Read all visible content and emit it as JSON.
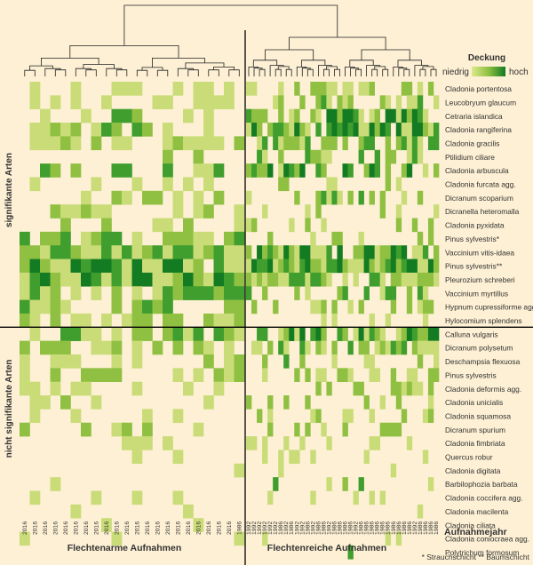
{
  "colors": {
    "background": "#fdf0d4",
    "scale": [
      "#fdf0d4",
      "#c9dc78",
      "#8fc042",
      "#3f9e2e",
      "#137b22"
    ],
    "line": "#000000"
  },
  "legend": {
    "title": "Deckung",
    "low": "niedrig",
    "high": "hoch"
  },
  "side_labels": {
    "top": "signifikante Arten",
    "bottom": "nicht signifikante Arten"
  },
  "bottom_labels": {
    "left": "Flechtenarme Aufnahmen",
    "right": "Flechtenreiche Aufnahmen",
    "year": "Aufnahmejahr"
  },
  "footnote": "* Strauchschicht  ** Baumschicht",
  "chart_data": {
    "type": "heatmap",
    "species_significant": [
      "Cladonia portentosa",
      "Leucobryum glaucum",
      "Cetraria islandica",
      "Cladonia rangiferina",
      "Cladonia gracilis",
      "Ptilidium ciliare",
      "Cladonia arbuscula",
      "Cladonia furcata agg.",
      "Dicranum scoparium",
      "Dicranella heteromalla",
      "Cladonia pyxidata",
      "Pinus sylvestris*",
      "Vaccinium vitis-idaea",
      "Pinus sylvestris**",
      "Pleurozium schreberi",
      "Vaccinium myrtillus",
      "Hypnum cupressiforme agg.",
      "Hylocomium splendens"
    ],
    "species_nonsignificant": [
      "Calluna vulgaris",
      "Dicranum polysetum",
      "Deschampsia flexuosa",
      "Pinus sylvestris",
      "Cladonia deformis agg.",
      "Cladonia unicialis",
      "Cladonia squamosa",
      "Dicranum spurium",
      "Cladonia fimbriata",
      "Quercus robur",
      "Cladonia digitata",
      "Barbilophozia barbata",
      "Cladonia coccifera agg.",
      "Cladonia macilenta",
      "Cladonia ciliata",
      "Cladonia coniocraea agg.",
      "Polytrichum formosum"
    ],
    "years_left": [
      "2016",
      "2016",
      "2016",
      "2016",
      "2016",
      "2016",
      "2016",
      "2016",
      "2016",
      "2016",
      "2016",
      "2016",
      "2016",
      "2016",
      "2016",
      "2016",
      "2016",
      "2016",
      "2016",
      "2016",
      "2016",
      "1986"
    ],
    "years_right": [
      "1992",
      "1992",
      "1992",
      "1992",
      "1992",
      "1992",
      "1986",
      "1992",
      "1986",
      "1992",
      "1992",
      "1986",
      "1992",
      "1986",
      "1986",
      "1992",
      "1986",
      "1986",
      "1986",
      "1986",
      "1992",
      "1986",
      "1986",
      "1986",
      "1986",
      "1986",
      "1986",
      "1986",
      "1986",
      "1986",
      "1986",
      "1992",
      "1986",
      "1986",
      "1986",
      "1986"
    ],
    "levels": 4
  }
}
